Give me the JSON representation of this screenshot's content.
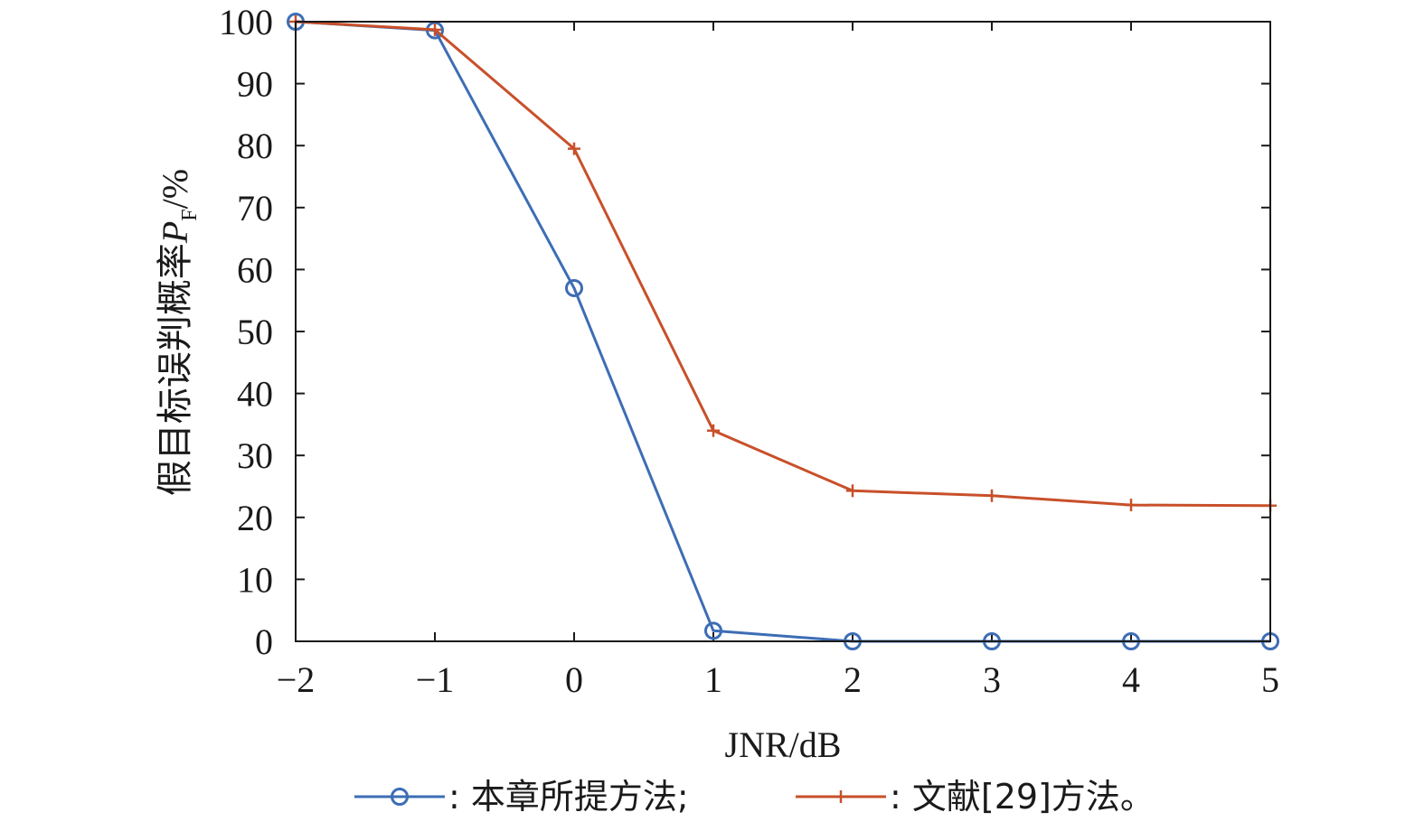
{
  "chart_data": {
    "type": "line",
    "x": [
      -2,
      -1,
      0,
      1,
      2,
      3,
      4,
      5
    ],
    "xlim": [
      -2,
      5
    ],
    "ylim": [
      0,
      100
    ],
    "xticks": [
      "−2",
      "−1",
      "0",
      "1",
      "2",
      "3",
      "4",
      "5"
    ],
    "yticks": [
      "0",
      "10",
      "20",
      "30",
      "40",
      "50",
      "60",
      "70",
      "80",
      "90",
      "100"
    ],
    "xlabel": "JNR/dB",
    "ylabel": {
      "main": "假目标误判概率",
      "symbol": "P",
      "subscript": "F",
      "unit": "/%"
    },
    "grid": false,
    "legend_position": "bottom",
    "series": [
      {
        "name": ": 本章所提方法;",
        "color": "#3d6db5",
        "marker": "circle",
        "values": [
          100,
          98.6,
          57,
          1.7,
          0,
          0,
          0,
          0
        ]
      },
      {
        "name": ": 文献[29]方法。",
        "color": "#c8502a",
        "marker": "plus",
        "values": [
          100,
          98.7,
          79.5,
          34,
          24.3,
          23.5,
          22,
          21.9
        ]
      }
    ]
  }
}
